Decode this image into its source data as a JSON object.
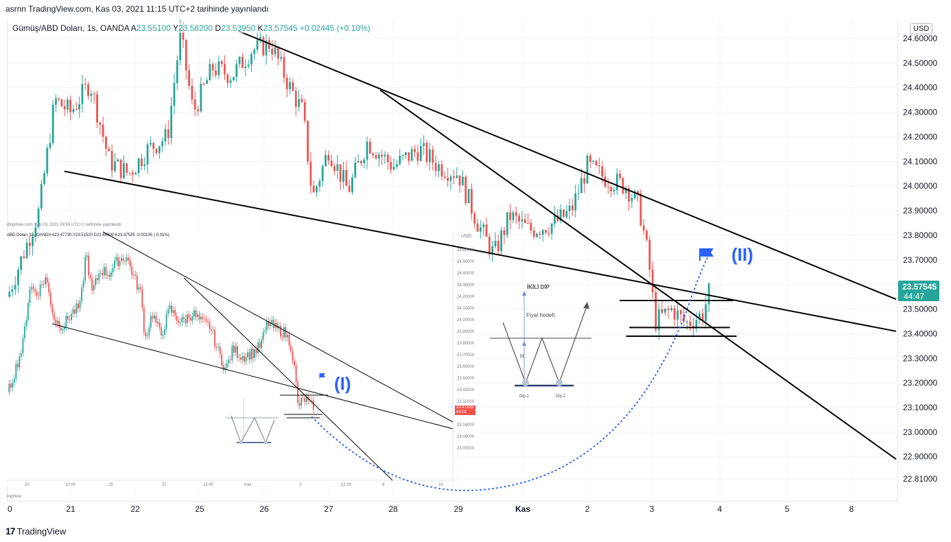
{
  "header": {
    "published_line": "asrnn TradingView.com, Kas 03, 2021 11:15 UTC+2 tarihinde yayınlandı"
  },
  "legend": {
    "symbol": "Gümüş/ABD Doları, 1s, OANDA",
    "open_label": "A",
    "open": "23.55100",
    "high_label": "Y",
    "high": "23.58200",
    "low_label": "D",
    "low": "23.53950",
    "close_label": "K",
    "close": "23.57545",
    "change": "+0.02445 (+0.10%)"
  },
  "currency_button": "USD",
  "price_tag": {
    "price": "23.57545",
    "countdown": "44:47"
  },
  "annotations": {
    "label_1": "(I)",
    "label_2": "(II)"
  },
  "inset": {
    "published_line": "dingView.com, Kas 03, 2021 09:55 UTC+2 tarihinde yayınlandı",
    "legend": "ABD Doları, 1s, OANDA  A23.47730  Y23.51520  D23.45500  K23.47535  -0.00195 (-0.01%)",
    "currency": "USD",
    "price_tag": {
      "price": "23.47535",
      "countdown": "04:02"
    },
    "y_ticks": [
      "24.60000",
      "24.50000",
      "24.40000",
      "24.30000",
      "24.20000",
      "24.10000",
      "24.00000",
      "23.90000",
      "23.80000",
      "23.70000",
      "23.60000",
      "23.50000",
      "23.40000",
      "23.32000",
      "23.24000",
      "23.16000",
      "23.08000",
      "23.00500"
    ],
    "x_ticks": [
      "20",
      "12:00",
      "25",
      "27",
      "12:00",
      "Kas",
      "3",
      "12:00",
      "8",
      "10"
    ],
    "footer": "ingView"
  },
  "dip_diagram": {
    "title": "İKİLİ DİP",
    "target_label": "Fiyat hedefi",
    "height_label": "H",
    "dip1": "Dip 1",
    "dip2": "Dip 2"
  },
  "footer": {
    "brand_mark": "17",
    "brand": "TradingView"
  },
  "colors": {
    "up": "#26a69a",
    "down": "#ef5350",
    "trend": "#000000",
    "projection": "#2962ff"
  },
  "chart_data": {
    "type": "candlestick",
    "title": "Gümüş/ABD Doları, 1s, OANDA",
    "ylabel": "USD",
    "ylim": [
      22.76,
      24.66
    ],
    "y_ticks": [
      "24.60000",
      "24.50000",
      "24.40000",
      "24.30000",
      "24.20000",
      "24.10000",
      "24.00000",
      "23.90000",
      "23.80000",
      "23.70000",
      "23.60000",
      "23.50000",
      "23.40000",
      "23.30000",
      "23.20000",
      "23.10000",
      "23.00000",
      "22.90000",
      "22.81000"
    ],
    "x_ticks": [
      "0",
      "21",
      "22",
      "25",
      "26",
      "27",
      "28",
      "29",
      "Kas",
      "2",
      "3",
      "4",
      "5",
      "8"
    ],
    "price_path": [
      {
        "x": 0.0,
        "y": 23.55
      },
      {
        "x": 0.5,
        "y": 23.9
      },
      {
        "x": 0.75,
        "y": 24.35
      },
      {
        "x": 1.0,
        "y": 24.3
      },
      {
        "x": 1.3,
        "y": 24.42
      },
      {
        "x": 1.6,
        "y": 24.1
      },
      {
        "x": 1.9,
        "y": 24.05
      },
      {
        "x": 2.2,
        "y": 24.15
      },
      {
        "x": 2.5,
        "y": 24.2
      },
      {
        "x": 2.7,
        "y": 24.62
      },
      {
        "x": 2.9,
        "y": 24.3
      },
      {
        "x": 3.2,
        "y": 24.48
      },
      {
        "x": 3.5,
        "y": 24.45
      },
      {
        "x": 3.8,
        "y": 24.55
      },
      {
        "x": 4.1,
        "y": 24.58
      },
      {
        "x": 4.4,
        "y": 24.4
      },
      {
        "x": 4.6,
        "y": 24.3
      },
      {
        "x": 4.75,
        "y": 23.95
      },
      {
        "x": 5.0,
        "y": 24.15
      },
      {
        "x": 5.3,
        "y": 23.98
      },
      {
        "x": 5.6,
        "y": 24.18
      },
      {
        "x": 6.0,
        "y": 24.08
      },
      {
        "x": 6.4,
        "y": 24.15
      },
      {
        "x": 6.7,
        "y": 24.08
      },
      {
        "x": 7.0,
        "y": 24.05
      },
      {
        "x": 7.3,
        "y": 23.85
      },
      {
        "x": 7.55,
        "y": 23.72
      },
      {
        "x": 7.8,
        "y": 23.88
      },
      {
        "x": 8.1,
        "y": 23.82
      },
      {
        "x": 8.5,
        "y": 23.85
      },
      {
        "x": 8.75,
        "y": 23.9
      },
      {
        "x": 9.0,
        "y": 24.08
      },
      {
        "x": 9.3,
        "y": 24.03
      },
      {
        "x": 9.6,
        "y": 24.0
      },
      {
        "x": 9.8,
        "y": 23.92
      },
      {
        "x": 9.95,
        "y": 23.7
      },
      {
        "x": 10.05,
        "y": 23.45
      },
      {
        "x": 10.3,
        "y": 23.5
      },
      {
        "x": 10.5,
        "y": 23.44
      },
      {
        "x": 10.75,
        "y": 23.48
      },
      {
        "x": 10.85,
        "y": 23.576
      }
    ],
    "trendlines": [
      {
        "x1": 0.9,
        "y1": 24.06,
        "x2": 13.7,
        "y2": 23.41
      },
      {
        "x1": 3.6,
        "y1": 24.63,
        "x2": 13.7,
        "y2": 23.54
      },
      {
        "x1": 5.8,
        "y1": 24.39,
        "x2": 13.7,
        "y2": 22.89
      }
    ],
    "levels": [
      {
        "x1": 9.5,
        "y": 23.535,
        "x2": 11.2
      },
      {
        "x1": 9.65,
        "y": 23.425,
        "x2": 11.15
      },
      {
        "x1": 9.6,
        "y": 23.39,
        "x2": 11.25
      }
    ],
    "last_price": 23.57545
  }
}
